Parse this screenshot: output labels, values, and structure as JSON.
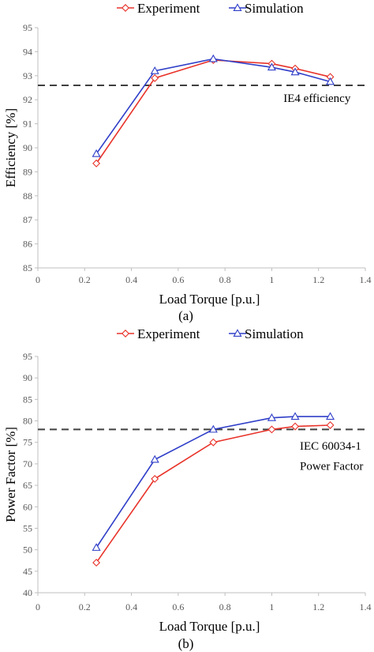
{
  "chart_data": [
    {
      "type": "line",
      "caption": "(a)",
      "xlabel": "Load Torque [p.u.]",
      "ylabel": "Efficiency [%]",
      "xlim": [
        0,
        1.4
      ],
      "ylim": [
        85,
        95
      ],
      "xticks": [
        0,
        0.2,
        0.4,
        0.6,
        0.8,
        1,
        1.2,
        1.4
      ],
      "xtick_labels": [
        "0",
        "0.2",
        "0.4",
        "0.6",
        "0.8",
        "1",
        "1.2",
        "1.4"
      ],
      "yticks": [
        85,
        86,
        87,
        88,
        89,
        90,
        91,
        92,
        93,
        94,
        95
      ],
      "ytick_labels": [
        "85",
        "86",
        "87",
        "88",
        "89",
        "90",
        "91",
        "92",
        "93",
        "94",
        "95"
      ],
      "legend_position": "top",
      "grid": false,
      "series": [
        {
          "name": "Experiment",
          "color": "#e8332a",
          "marker": "diamond-open",
          "x": [
            0.25,
            0.5,
            0.75,
            1.0,
            1.1,
            1.25
          ],
          "y": [
            89.35,
            92.9,
            93.65,
            93.5,
            93.3,
            92.95
          ]
        },
        {
          "name": "Simulation",
          "color": "#2f3ec8",
          "marker": "triangle-open",
          "x": [
            0.25,
            0.5,
            0.75,
            1.0,
            1.1,
            1.25
          ],
          "y": [
            89.75,
            93.2,
            93.7,
            93.35,
            93.15,
            92.75
          ]
        }
      ],
      "reference_line": {
        "y": 92.6,
        "style": "dashed",
        "color": "#404040"
      },
      "annotations": [
        {
          "text": "IE4 efficiency",
          "x": 1.05,
          "y": 91.9
        }
      ]
    },
    {
      "type": "line",
      "caption": "(b)",
      "xlabel": "Load Torque [p.u.]",
      "ylabel": "Power Factor [%]",
      "xlim": [
        0,
        1.4
      ],
      "ylim": [
        40,
        95
      ],
      "xticks": [
        0,
        0.2,
        0.4,
        0.6,
        0.8,
        1,
        1.2,
        1.4
      ],
      "xtick_labels": [
        "0",
        "0.2",
        "0.4",
        "0.6",
        "0.8",
        "1",
        "1.2",
        "1.4"
      ],
      "yticks": [
        40,
        45,
        50,
        55,
        60,
        65,
        70,
        75,
        80,
        85,
        90,
        95
      ],
      "ytick_labels": [
        "40",
        "45",
        "50",
        "55",
        "60",
        "65",
        "70",
        "75",
        "80",
        "85",
        "90",
        "95"
      ],
      "legend_position": "top",
      "grid": false,
      "series": [
        {
          "name": "Experiment",
          "color": "#e8332a",
          "marker": "diamond-open",
          "x": [
            0.25,
            0.5,
            0.75,
            1.0,
            1.1,
            1.25
          ],
          "y": [
            47,
            66.5,
            75,
            78,
            78.7,
            79
          ]
        },
        {
          "name": "Simulation",
          "color": "#2f3ec8",
          "marker": "triangle-open",
          "x": [
            0.25,
            0.5,
            0.75,
            1.0,
            1.1,
            1.25
          ],
          "y": [
            50.5,
            71,
            78,
            80.7,
            81,
            81
          ]
        }
      ],
      "reference_line": {
        "y": 78,
        "style": "dashed",
        "color": "#404040"
      },
      "annotations": [
        {
          "text": "IEC 60034-1",
          "x": 1.12,
          "y": 73.3
        },
        {
          "text": "Power Factor",
          "x": 1.12,
          "y": 68.6
        }
      ]
    }
  ]
}
